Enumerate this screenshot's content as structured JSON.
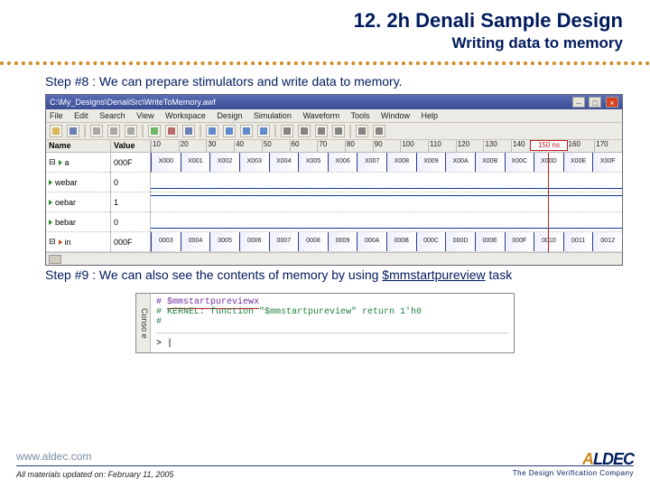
{
  "header": {
    "title": "12. 2h Denali Sample Design",
    "subtitle": "Writing data to memory"
  },
  "step8": "Step #8 : We can prepare stimulators and write data to memory.",
  "shot1": {
    "window_title": "C:\\My_Designs\\DenaliSrc\\WriteToMemory.awf",
    "menus": [
      "File",
      "Edit",
      "Search",
      "View",
      "Workspace",
      "Design",
      "Simulation",
      "Waveform",
      "Tools",
      "Window",
      "Help"
    ],
    "col_name": "Name",
    "col_value": "Value",
    "cursor": "150 ns",
    "time_ticks": [
      "10",
      "20",
      "30",
      "40",
      "50",
      "60",
      "70",
      "80",
      "90",
      "100",
      "110",
      "120",
      "130",
      "140",
      "150",
      "160",
      "170"
    ],
    "signals": [
      {
        "name": "a",
        "value": "000F",
        "type": "bus",
        "dir": "g",
        "cells": [
          "X000",
          "X001",
          "X002",
          "X003",
          "X004",
          "X005",
          "X006",
          "X007",
          "X008",
          "X009",
          "X00A",
          "X00B",
          "X00C",
          "X00D",
          "X00E",
          "X00F"
        ]
      },
      {
        "name": "webar",
        "value": "0",
        "type": "lo",
        "dir": "g"
      },
      {
        "name": "oebar",
        "value": "1",
        "type": "hi",
        "dir": "g"
      },
      {
        "name": "bebar",
        "value": "0",
        "type": "lo",
        "dir": "g"
      },
      {
        "name": "in",
        "value": "000F",
        "type": "bus",
        "dir": "o",
        "cells": [
          "0003",
          "0004",
          "0005",
          "0006",
          "0007",
          "0008",
          "0009",
          "000A",
          "000B",
          "000C",
          "000D",
          "000E",
          "000F",
          "0010",
          "0011",
          "0012"
        ]
      }
    ]
  },
  "step9": {
    "prefix": "Step #9 : We can also see the contents of memory by using ",
    "task": "$mmstartpureview",
    "suffix": " task"
  },
  "shot2": {
    "tab": "Conso e",
    "line1_cmd": "$mmstartpureviewx",
    "line2": "# KERNEL: function \"$mmstartpureview\" return 1'h0",
    "prompt": "> |"
  },
  "footer": {
    "site": "www.aldec.com",
    "updated": "All materials updated on: February 11, 2005",
    "logo_a": "A",
    "logo_rest": "LDEC",
    "tagline": "The Design Verification Company"
  },
  "colors": {
    "title": "#001a5c",
    "accent": "#d08820",
    "cursor": "#c02020"
  }
}
